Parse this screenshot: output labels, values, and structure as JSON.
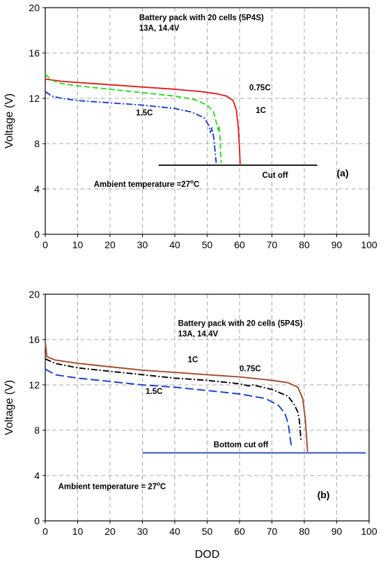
{
  "chart_data": [
    {
      "type": "line",
      "panel_label": "(a)",
      "title_line1": "Battery pack with 20 cells (5P4S)",
      "title_line2": "13A, 14.4V",
      "ylabel": "Voltage (V)",
      "xlabel": "",
      "xlim": [
        0,
        100
      ],
      "ylim": [
        0,
        20
      ],
      "xticks": [
        "0",
        "10",
        "20",
        "30",
        "40",
        "50",
        "60",
        "70",
        "80",
        "90",
        "100"
      ],
      "yticks": [
        "0",
        "4",
        "8",
        "12",
        "16",
        "20"
      ],
      "grid": true,
      "ambient_pre": "Ambient temperature =27",
      "ambient_sup": "o",
      "ambient_post": "C",
      "cutoff_label": "Cut off",
      "series": [
        {
          "name": "0.75C",
          "color": "#e02020",
          "dash": "",
          "points": [
            [
              0,
              13.7
            ],
            [
              5,
              13.5
            ],
            [
              10,
              13.4
            ],
            [
              20,
              13.2
            ],
            [
              30,
              13.0
            ],
            [
              40,
              12.8
            ],
            [
              48,
              12.6
            ],
            [
              53,
              12.4
            ],
            [
              56,
              12.2
            ],
            [
              58,
              11.8
            ],
            [
              59,
              11.0
            ],
            [
              59.6,
              9.5
            ],
            [
              60,
              7.5
            ],
            [
              60.2,
              6.1
            ]
          ]
        },
        {
          "name": "1C",
          "color": "#22dd22",
          "dash": "8 4",
          "points": [
            [
              0,
              14.1
            ],
            [
              2,
              13.6
            ],
            [
              5,
              13.3
            ],
            [
              10,
              13.1
            ],
            [
              20,
              12.8
            ],
            [
              30,
              12.5
            ],
            [
              40,
              12.2
            ],
            [
              46,
              11.9
            ],
            [
              50,
              11.4
            ],
            [
              52,
              10.8
            ],
            [
              52.8,
              9.9
            ],
            [
              53.4,
              9.2
            ],
            [
              53.7,
              9.6
            ],
            [
              54,
              8.4
            ],
            [
              54.3,
              6.3
            ]
          ]
        },
        {
          "name": "1.5C",
          "color": "#1a3ad0",
          "dash": "9 3 2 3",
          "points": [
            [
              0,
              12.6
            ],
            [
              2,
              12.2
            ],
            [
              5,
              12.0
            ],
            [
              10,
              11.8
            ],
            [
              20,
              11.6
            ],
            [
              30,
              11.4
            ],
            [
              40,
              11.1
            ],
            [
              45,
              10.8
            ],
            [
              49,
              10.3
            ],
            [
              50.5,
              9.6
            ],
            [
              51,
              9.0
            ],
            [
              51.5,
              9.4
            ],
            [
              52,
              8.6
            ],
            [
              52.8,
              6.3
            ]
          ]
        }
      ],
      "series_labels": [
        {
          "text": "0.75C",
          "x": 63,
          "y": 12.7
        },
        {
          "text": "1C",
          "x": 65,
          "y": 10.7
        },
        {
          "text": "1.5C",
          "x": 28,
          "y": 10.5
        }
      ],
      "cutoff_line": {
        "x1": 35,
        "x2": 84,
        "y": 6.1,
        "color": "#000000"
      },
      "title_pos": {
        "x": 29,
        "y": 18.9
      },
      "ambient_pos": {
        "x": 15,
        "y": 4.2
      },
      "cutoff_pos": {
        "x": 67,
        "y": 5.0
      },
      "panel_pos": {
        "x": 90,
        "y": 5.1
      }
    },
    {
      "type": "line",
      "panel_label": "(b)",
      "title_line1": "Battery pack with 20 cells (5P4S)",
      "title_line2": "13A, 14.4V",
      "ylabel": "Voltage (V)",
      "xlabel": "DOD",
      "xlim": [
        0,
        100
      ],
      "ylim": [
        0,
        20
      ],
      "xticks": [
        "0",
        "10",
        "20",
        "30",
        "40",
        "50",
        "60",
        "70",
        "80",
        "90",
        "100"
      ],
      "yticks": [
        "0",
        "4",
        "8",
        "12",
        "16",
        "20"
      ],
      "grid": true,
      "ambient_pre": "Ambient temperature = 27",
      "ambient_sup": "o",
      "ambient_post": "C",
      "cutoff_label": "Bottom cut off",
      "series": [
        {
          "name": "0.75C",
          "color": "#a24a2a",
          "dash": "",
          "points": [
            [
              0,
              15.8
            ],
            [
              0.5,
              14.5
            ],
            [
              3,
              14.2
            ],
            [
              10,
              13.9
            ],
            [
              20,
              13.6
            ],
            [
              30,
              13.3
            ],
            [
              40,
              13.1
            ],
            [
              50,
              12.9
            ],
            [
              60,
              12.7
            ],
            [
              70,
              12.4
            ],
            [
              75,
              12.2
            ],
            [
              78,
              11.8
            ],
            [
              79.5,
              10.8
            ],
            [
              80.3,
              9.0
            ],
            [
              80.8,
              7.0
            ],
            [
              81,
              6.1
            ]
          ]
        },
        {
          "name": "1C",
          "color": "#000000",
          "dash": "9 3 2 3",
          "points": [
            [
              0,
              14.3
            ],
            [
              3,
              13.9
            ],
            [
              10,
              13.5
            ],
            [
              20,
              13.2
            ],
            [
              30,
              12.9
            ],
            [
              40,
              12.6
            ],
            [
              50,
              12.4
            ],
            [
              60,
              12.1
            ],
            [
              63,
              11.9
            ],
            [
              64,
              12.0
            ],
            [
              70,
              11.6
            ],
            [
              75,
              11.0
            ],
            [
              77,
              10.2
            ],
            [
              78,
              9.6
            ],
            [
              78.5,
              8.8
            ],
            [
              79,
              7.0
            ]
          ]
        },
        {
          "name": "1.5C",
          "color": "#1a3ad0",
          "dash": "12 5",
          "points": [
            [
              0,
              13.4
            ],
            [
              3,
              12.9
            ],
            [
              10,
              12.6
            ],
            [
              20,
              12.3
            ],
            [
              30,
              12.0
            ],
            [
              40,
              11.8
            ],
            [
              50,
              11.5
            ],
            [
              60,
              11.2
            ],
            [
              68,
              10.8
            ],
            [
              72,
              10.2
            ],
            [
              74,
              9.5
            ],
            [
              75,
              8.6
            ],
            [
              75.6,
              7.4
            ],
            [
              76,
              6.6
            ]
          ]
        }
      ],
      "series_labels": [
        {
          "text": "1C",
          "x": 44,
          "y": 14.0
        },
        {
          "text": "0.75C",
          "x": 60,
          "y": 13.2
        },
        {
          "text": "1.5C",
          "x": 31,
          "y": 11.2
        }
      ],
      "cutoff_line": {
        "x1": 30,
        "x2": 99,
        "y": 6.0,
        "color": "#1a3ad0"
      },
      "title_pos": {
        "x": 41,
        "y": 17.2
      },
      "ambient_pos": {
        "x": 4,
        "y": 2.8
      },
      "cutoff_pos": {
        "x": 52,
        "y": 6.5
      },
      "panel_pos": {
        "x": 84,
        "y": 2.0
      }
    }
  ]
}
